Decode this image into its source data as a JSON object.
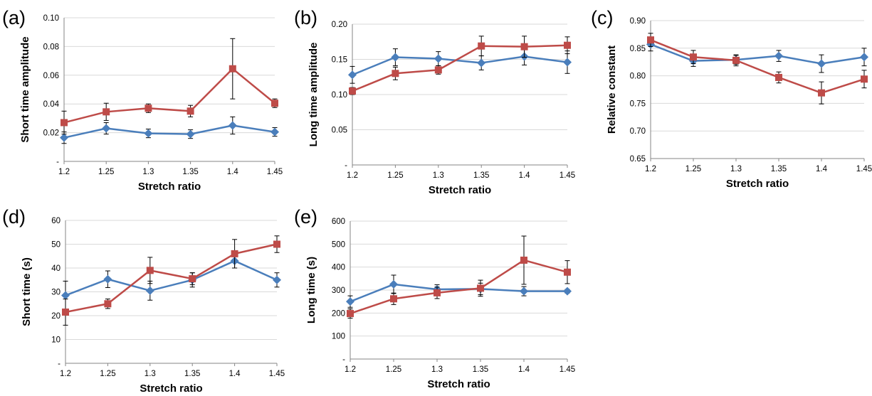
{
  "colors": {
    "series_blue": "#4a7ebb",
    "series_red": "#be4b48",
    "grid": "#d9d9d9",
    "axis": "#868686",
    "errorbar": "#000000"
  },
  "series_markers": {
    "blue": "diamond",
    "red": "square"
  },
  "chart_data": [
    {
      "panel_label": "(a)",
      "type": "line",
      "categories": [
        "1.2",
        "1.25",
        "1.3",
        "1.35",
        "1.4",
        "1.45"
      ],
      "ylabel": "Short time amplitude",
      "xlabel": "Stretch ratio",
      "ylim": [
        0,
        0.1
      ],
      "yticks": [
        "-",
        "0.02",
        "0.04",
        "0.06",
        "0.08",
        "0.10"
      ],
      "grid": true,
      "legend": "none",
      "series": [
        {
          "color": "blue",
          "values": [
            0.0165,
            0.023,
            0.0195,
            0.019,
            0.025,
            0.0205
          ],
          "errors": [
            0.004,
            0.004,
            0.003,
            0.003,
            0.006,
            0.003
          ]
        },
        {
          "color": "red",
          "values": [
            0.027,
            0.0345,
            0.037,
            0.035,
            0.0645,
            0.0405
          ],
          "errors": [
            0.008,
            0.006,
            0.003,
            0.004,
            0.021,
            0.003
          ]
        }
      ]
    },
    {
      "panel_label": "(b)",
      "type": "line",
      "categories": [
        "1.2",
        "1.25",
        "1.3",
        "1.35",
        "1.4",
        "1.45"
      ],
      "ylabel": "Long time amplitude",
      "xlabel": "Stretch ratio",
      "ylim": [
        0,
        0.2
      ],
      "yticks": [
        "-",
        "0.05",
        "0.10",
        "0.15",
        "0.20"
      ],
      "grid": true,
      "legend": "none",
      "series": [
        {
          "color": "blue",
          "values": [
            0.128,
            0.153,
            0.151,
            0.145,
            0.154,
            0.146
          ],
          "errors": [
            0.012,
            0.012,
            0.01,
            0.01,
            0.012,
            0.016
          ]
        },
        {
          "color": "red",
          "values": [
            0.105,
            0.13,
            0.135,
            0.169,
            0.168,
            0.17
          ],
          "errors": [
            0.005,
            0.009,
            0.006,
            0.014,
            0.015,
            0.012
          ]
        }
      ]
    },
    {
      "panel_label": "(c)",
      "type": "line",
      "categories": [
        "1.2",
        "1.25",
        "1.3",
        "1.35",
        "1.4",
        "1.45"
      ],
      "ylabel": "Relative constant",
      "xlabel": "Stretch ratio",
      "ylim": [
        0.65,
        0.9
      ],
      "yticks": [
        "0.65",
        "0.70",
        "0.75",
        "0.80",
        "0.85",
        "0.90"
      ],
      "grid": true,
      "legend": "none",
      "series": [
        {
          "color": "blue",
          "values": [
            0.857,
            0.827,
            0.829,
            0.836,
            0.822,
            0.834
          ],
          "errors": [
            0.012,
            0.01,
            0.008,
            0.01,
            0.016,
            0.016
          ]
        },
        {
          "color": "red",
          "values": [
            0.865,
            0.834,
            0.828,
            0.797,
            0.769,
            0.794
          ],
          "errors": [
            0.012,
            0.012,
            0.01,
            0.01,
            0.02,
            0.016
          ]
        }
      ]
    },
    {
      "panel_label": "(d)",
      "type": "line",
      "categories": [
        "1.2",
        "1.25",
        "1.3",
        "1.35",
        "1.4",
        "1.45"
      ],
      "ylabel": "Short time (s)",
      "xlabel": "Stretch ratio",
      "ylim": [
        0,
        60
      ],
      "yticks": [
        "-",
        "10",
        "20",
        "30",
        "40",
        "50",
        "60"
      ],
      "grid": true,
      "legend": "none",
      "series": [
        {
          "color": "blue",
          "values": [
            28.5,
            35.3,
            30.5,
            35.0,
            43.0,
            35.0
          ],
          "errors": [
            6.0,
            3.5,
            4.0,
            3.0,
            3.0,
            3.0
          ]
        },
        {
          "color": "red",
          "values": [
            21.5,
            25.0,
            39.0,
            35.5,
            46.0,
            50.0
          ],
          "errors": [
            5.5,
            2.0,
            5.5,
            2.5,
            6.0,
            3.5
          ]
        }
      ]
    },
    {
      "panel_label": "(e)",
      "type": "line",
      "categories": [
        "1.2",
        "1.25",
        "1.3",
        "1.35",
        "1.4",
        "1.45"
      ],
      "ylabel": "Long time (s)",
      "xlabel": "Stretch ratio",
      "ylim": [
        0,
        600
      ],
      "yticks": [
        "-",
        "100",
        "200",
        "300",
        "400",
        "500",
        "600"
      ],
      "grid": true,
      "legend": "none",
      "series": [
        {
          "color": "blue",
          "values": [
            250,
            325,
            303,
            305,
            295,
            295
          ],
          "errors": [
            25,
            40,
            20,
            25,
            20,
            8
          ]
        },
        {
          "color": "red",
          "values": [
            198,
            262,
            288,
            308,
            430,
            378
          ],
          "errors": [
            20,
            25,
            25,
            35,
            105,
            50
          ]
        }
      ]
    }
  ]
}
